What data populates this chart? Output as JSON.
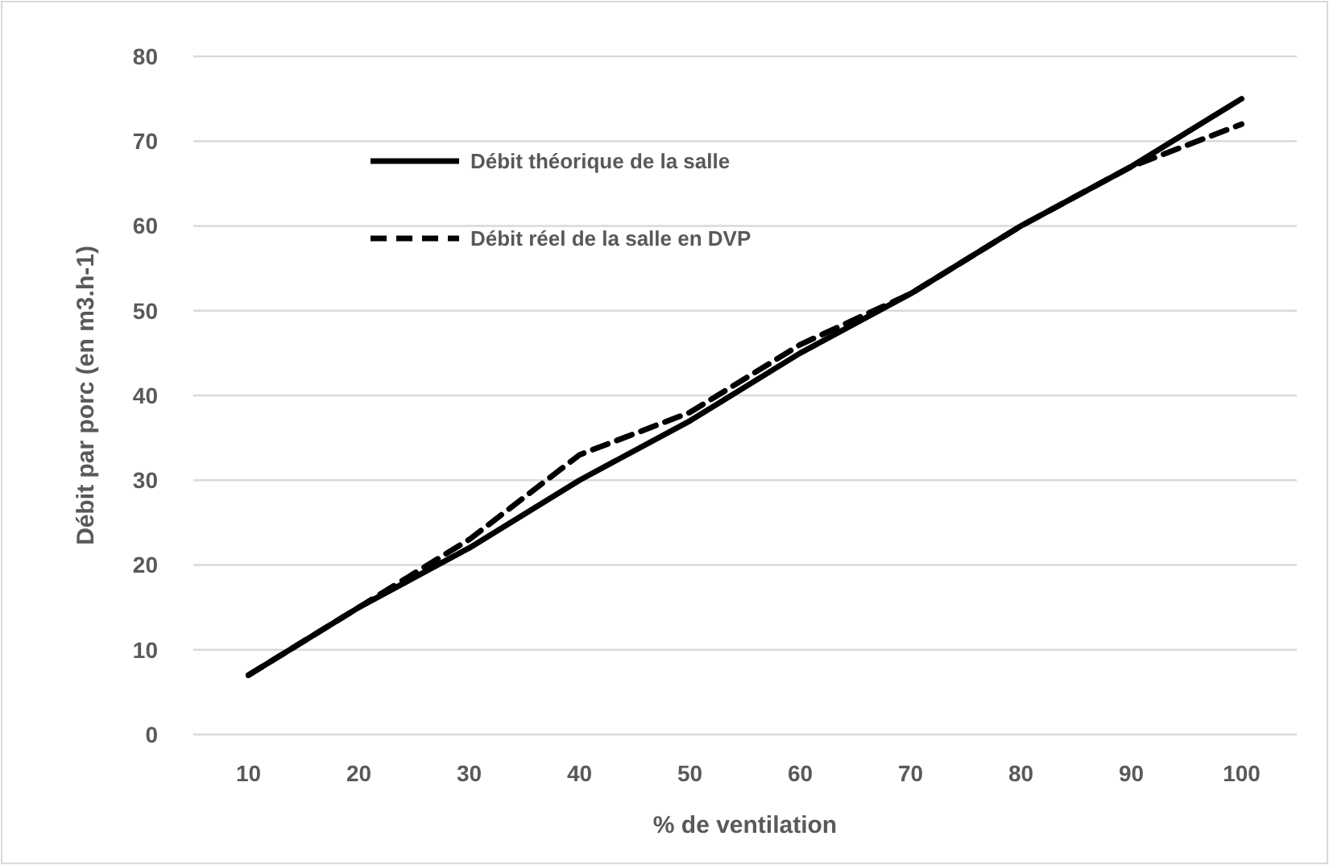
{
  "chart_data": {
    "type": "line",
    "xlabel": "% de ventilation",
    "ylabel": "Débit par porc (en m3.h-1)",
    "categories": [
      "10",
      "20",
      "30",
      "40",
      "50",
      "60",
      "70",
      "80",
      "90",
      "100"
    ],
    "series": [
      {
        "name": "Débit théorique de la salle",
        "color": "#000000",
        "line_style": "solid",
        "values": [
          7,
          15,
          22,
          30,
          37,
          45,
          52,
          60,
          67,
          75
        ]
      },
      {
        "name": "Débit réel de la salle en DVP",
        "color": "#000000",
        "line_style": "dashed",
        "values": [
          7,
          15,
          23,
          33,
          38,
          46,
          52,
          60,
          67,
          72
        ]
      }
    ],
    "ylim": [
      0,
      80
    ],
    "yticks": [
      0,
      10,
      20,
      30,
      40,
      50,
      60,
      70,
      80
    ],
    "grid": "y",
    "legend": "top left",
    "marker": "none"
  }
}
